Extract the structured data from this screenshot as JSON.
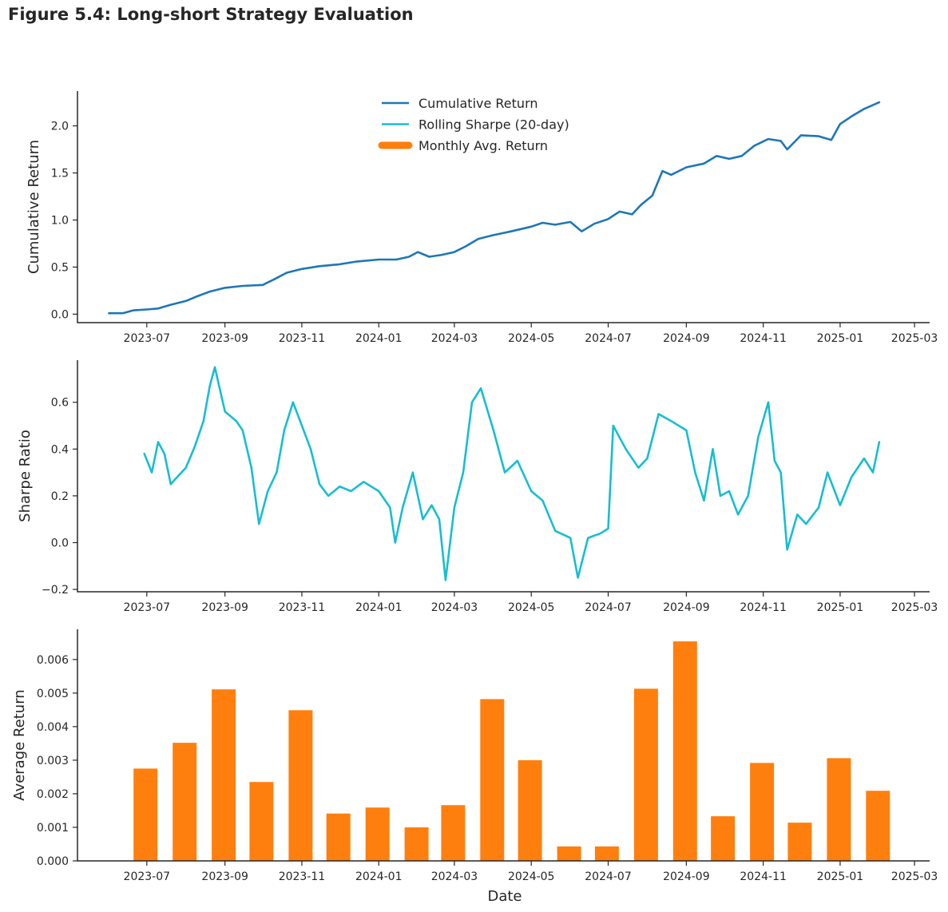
{
  "figure_title": "Figure 5.4: Long-short Strategy Evaluation",
  "colors": {
    "cumulative": "#1f77b4",
    "sharpe": "#17becf",
    "bars": "#ff7f0e",
    "axis": "#262626"
  },
  "chart_data": [
    {
      "type": "line",
      "ylabel": "Cumulative Return",
      "ylim": [
        -0.09,
        2.37
      ],
      "yticks": [
        "0.0",
        "0.5",
        "1.0",
        "1.5",
        "2.0"
      ],
      "xticks": [
        "2023-07",
        "2023-09",
        "2023-11",
        "2024-01",
        "2024-03",
        "2024-05",
        "2024-07",
        "2024-09",
        "2024-11",
        "2025-01",
        "2025-03"
      ],
      "xlim": [
        "2023-05-07",
        "2025-03-13"
      ],
      "legend": {
        "placement": "top-center",
        "entries": [
          "Cumulative Return",
          "Rolling Sharpe (20-day)",
          "Monthly Avg. Return"
        ]
      },
      "series": [
        {
          "name": "Cumulative Return",
          "points": [
            [
              "2023-06-01",
              0.01
            ],
            [
              "2023-06-12",
              0.01
            ],
            [
              "2023-06-20",
              0.04
            ],
            [
              "2023-07-01",
              0.05
            ],
            [
              "2023-07-10",
              0.06
            ],
            [
              "2023-07-20",
              0.1
            ],
            [
              "2023-08-01",
              0.14
            ],
            [
              "2023-08-10",
              0.19
            ],
            [
              "2023-08-20",
              0.24
            ],
            [
              "2023-09-01",
              0.28
            ],
            [
              "2023-09-15",
              0.3
            ],
            [
              "2023-10-01",
              0.31
            ],
            [
              "2023-10-10",
              0.37
            ],
            [
              "2023-10-20",
              0.44
            ],
            [
              "2023-11-01",
              0.48
            ],
            [
              "2023-11-15",
              0.51
            ],
            [
              "2023-12-01",
              0.53
            ],
            [
              "2023-12-15",
              0.56
            ],
            [
              "2024-01-01",
              0.58
            ],
            [
              "2024-01-15",
              0.58
            ],
            [
              "2024-01-25",
              0.61
            ],
            [
              "2024-02-01",
              0.66
            ],
            [
              "2024-02-10",
              0.61
            ],
            [
              "2024-02-20",
              0.63
            ],
            [
              "2024-03-01",
              0.66
            ],
            [
              "2024-03-10",
              0.72
            ],
            [
              "2024-03-20",
              0.8
            ],
            [
              "2024-04-01",
              0.84
            ],
            [
              "2024-04-15",
              0.88
            ],
            [
              "2024-05-01",
              0.93
            ],
            [
              "2024-05-10",
              0.97
            ],
            [
              "2024-05-20",
              0.95
            ],
            [
              "2024-06-01",
              0.98
            ],
            [
              "2024-06-10",
              0.88
            ],
            [
              "2024-06-20",
              0.96
            ],
            [
              "2024-07-01",
              1.01
            ],
            [
              "2024-07-10",
              1.09
            ],
            [
              "2024-07-20",
              1.06
            ],
            [
              "2024-07-27",
              1.16
            ],
            [
              "2024-08-05",
              1.26
            ],
            [
              "2024-08-13",
              1.52
            ],
            [
              "2024-08-20",
              1.48
            ],
            [
              "2024-09-01",
              1.56
            ],
            [
              "2024-09-15",
              1.6
            ],
            [
              "2024-09-25",
              1.68
            ],
            [
              "2024-10-05",
              1.65
            ],
            [
              "2024-10-15",
              1.68
            ],
            [
              "2024-10-25",
              1.79
            ],
            [
              "2024-11-05",
              1.86
            ],
            [
              "2024-11-15",
              1.84
            ],
            [
              "2024-11-20",
              1.75
            ],
            [
              "2024-12-01",
              1.9
            ],
            [
              "2024-12-15",
              1.89
            ],
            [
              "2024-12-25",
              1.85
            ],
            [
              "2025-01-01",
              2.02
            ],
            [
              "2025-01-10",
              2.1
            ],
            [
              "2025-01-20",
              2.18
            ],
            [
              "2025-02-01",
              2.25
            ]
          ]
        }
      ]
    },
    {
      "type": "line",
      "ylabel": "Sharpe Ratio",
      "ylim": [
        -0.21,
        0.78
      ],
      "yticks": [
        "−0.2",
        "0.0",
        "0.2",
        "0.4",
        "0.6"
      ],
      "xticks": [
        "2023-07",
        "2023-09",
        "2023-11",
        "2024-01",
        "2024-03",
        "2024-05",
        "2024-07",
        "2024-09",
        "2024-11",
        "2025-01",
        "2025-03"
      ],
      "xlim": [
        "2023-05-07",
        "2025-03-13"
      ],
      "series": [
        {
          "name": "Rolling Sharpe (20-day)",
          "points": [
            [
              "2023-06-29",
              0.38
            ],
            [
              "2023-07-05",
              0.3
            ],
            [
              "2023-07-10",
              0.43
            ],
            [
              "2023-07-15",
              0.38
            ],
            [
              "2023-07-20",
              0.25
            ],
            [
              "2023-07-25",
              0.28
            ],
            [
              "2023-08-01",
              0.32
            ],
            [
              "2023-08-08",
              0.41
            ],
            [
              "2023-08-15",
              0.52
            ],
            [
              "2023-08-20",
              0.67
            ],
            [
              "2023-08-24",
              0.75
            ],
            [
              "2023-09-01",
              0.56
            ],
            [
              "2023-09-10",
              0.52
            ],
            [
              "2023-09-15",
              0.48
            ],
            [
              "2023-09-22",
              0.32
            ],
            [
              "2023-09-28",
              0.08
            ],
            [
              "2023-10-05",
              0.22
            ],
            [
              "2023-10-12",
              0.3
            ],
            [
              "2023-10-18",
              0.48
            ],
            [
              "2023-10-25",
              0.6
            ],
            [
              "2023-11-01",
              0.5
            ],
            [
              "2023-11-08",
              0.4
            ],
            [
              "2023-11-15",
              0.25
            ],
            [
              "2023-11-22",
              0.2
            ],
            [
              "2023-12-01",
              0.24
            ],
            [
              "2023-12-10",
              0.22
            ],
            [
              "2023-12-20",
              0.26
            ],
            [
              "2024-01-01",
              0.22
            ],
            [
              "2024-01-10",
              0.15
            ],
            [
              "2024-01-14",
              0.0
            ],
            [
              "2024-01-20",
              0.15
            ],
            [
              "2024-01-28",
              0.3
            ],
            [
              "2024-02-05",
              0.1
            ],
            [
              "2024-02-12",
              0.16
            ],
            [
              "2024-02-18",
              0.1
            ],
            [
              "2024-02-23",
              -0.16
            ],
            [
              "2024-03-01",
              0.15
            ],
            [
              "2024-03-08",
              0.3
            ],
            [
              "2024-03-15",
              0.6
            ],
            [
              "2024-03-22",
              0.66
            ],
            [
              "2024-04-01",
              0.48
            ],
            [
              "2024-04-10",
              0.3
            ],
            [
              "2024-04-20",
              0.35
            ],
            [
              "2024-05-01",
              0.22
            ],
            [
              "2024-05-10",
              0.18
            ],
            [
              "2024-05-20",
              0.05
            ],
            [
              "2024-06-01",
              0.02
            ],
            [
              "2024-06-07",
              -0.15
            ],
            [
              "2024-06-15",
              0.02
            ],
            [
              "2024-06-25",
              0.04
            ],
            [
              "2024-07-01",
              0.06
            ],
            [
              "2024-07-05",
              0.5
            ],
            [
              "2024-07-15",
              0.4
            ],
            [
              "2024-07-25",
              0.32
            ],
            [
              "2024-08-01",
              0.36
            ],
            [
              "2024-08-10",
              0.55
            ],
            [
              "2024-08-20",
              0.52
            ],
            [
              "2024-09-01",
              0.48
            ],
            [
              "2024-09-08",
              0.3
            ],
            [
              "2024-09-15",
              0.18
            ],
            [
              "2024-09-22",
              0.4
            ],
            [
              "2024-09-28",
              0.2
            ],
            [
              "2024-10-05",
              0.22
            ],
            [
              "2024-10-12",
              0.12
            ],
            [
              "2024-10-20",
              0.2
            ],
            [
              "2024-10-28",
              0.45
            ],
            [
              "2024-11-05",
              0.6
            ],
            [
              "2024-11-10",
              0.35
            ],
            [
              "2024-11-15",
              0.3
            ],
            [
              "2024-11-20",
              -0.03
            ],
            [
              "2024-11-28",
              0.12
            ],
            [
              "2024-12-05",
              0.08
            ],
            [
              "2024-12-15",
              0.15
            ],
            [
              "2024-12-22",
              0.3
            ],
            [
              "2025-01-01",
              0.16
            ],
            [
              "2025-01-10",
              0.28
            ],
            [
              "2025-01-20",
              0.36
            ],
            [
              "2025-01-27",
              0.3
            ],
            [
              "2025-02-01",
              0.43
            ]
          ]
        }
      ]
    },
    {
      "type": "bar",
      "xlabel": "Date",
      "ylabel": "Average Return",
      "ylim": [
        0,
        0.0069
      ],
      "yticks": [
        "0.000",
        "0.001",
        "0.002",
        "0.003",
        "0.004",
        "0.005",
        "0.006"
      ],
      "xticks": [
        "2023-07",
        "2023-09",
        "2023-11",
        "2024-01",
        "2024-03",
        "2024-05",
        "2024-07",
        "2024-09",
        "2024-11",
        "2025-01",
        "2025-03"
      ],
      "xlim": [
        "2023-05-07",
        "2025-03-13"
      ],
      "series": [
        {
          "name": "Monthly Avg. Return",
          "bars": [
            [
              "2023-06-30",
              0.00275
            ],
            [
              "2023-07-31",
              0.00352
            ],
            [
              "2023-08-31",
              0.00511
            ],
            [
              "2023-09-30",
              0.00235
            ],
            [
              "2023-10-31",
              0.00449
            ],
            [
              "2023-11-30",
              0.00141
            ],
            [
              "2023-12-31",
              0.00159
            ],
            [
              "2024-01-31",
              0.001
            ],
            [
              "2024-02-29",
              0.00166
            ],
            [
              "2024-03-31",
              0.00482
            ],
            [
              "2024-04-30",
              0.003
            ],
            [
              "2024-05-31",
              0.00043
            ],
            [
              "2024-06-30",
              0.00043
            ],
            [
              "2024-07-31",
              0.00513
            ],
            [
              "2024-08-31",
              0.00654
            ],
            [
              "2024-09-30",
              0.00133
            ],
            [
              "2024-10-31",
              0.00292
            ],
            [
              "2024-11-30",
              0.00114
            ],
            [
              "2024-12-31",
              0.00306
            ],
            [
              "2025-01-31",
              0.00209
            ]
          ]
        }
      ]
    }
  ]
}
